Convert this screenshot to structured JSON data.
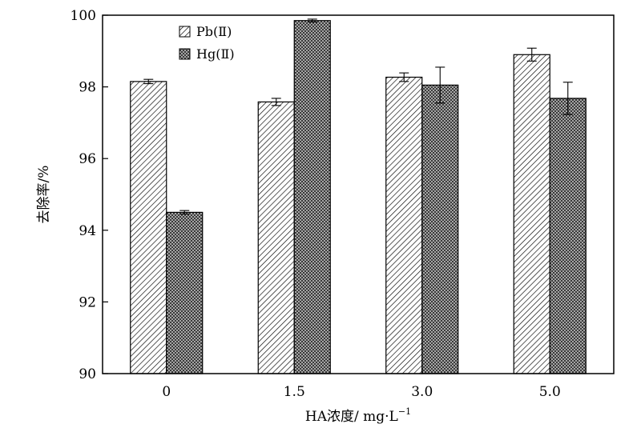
{
  "chart_data": {
    "type": "bar",
    "title": "",
    "xlabel": "HA浓度/ mg·L",
    "xlabel_superscript": "−1",
    "ylabel": "去除率/%",
    "ylim": [
      90,
      100
    ],
    "yticks": [
      90,
      92,
      94,
      96,
      98,
      100
    ],
    "ytick_labels": [
      "90",
      "92",
      "94",
      "96",
      "98",
      "100"
    ],
    "categories": [
      "0",
      "1.5",
      "3.0",
      "5.0"
    ],
    "grid": false,
    "legend_position": "top-left",
    "series": [
      {
        "name": "Pb(Ⅱ)",
        "pattern": "diagonal-hatch",
        "values": [
          98.15,
          97.58,
          98.27,
          98.9
        ],
        "errors": [
          0.06,
          0.1,
          0.12,
          0.18
        ]
      },
      {
        "name": "Hg(Ⅱ)",
        "pattern": "dotted-dark",
        "values": [
          94.5,
          99.85,
          98.05,
          97.68
        ],
        "errors": [
          0.05,
          0.04,
          0.5,
          0.45
        ]
      }
    ]
  }
}
